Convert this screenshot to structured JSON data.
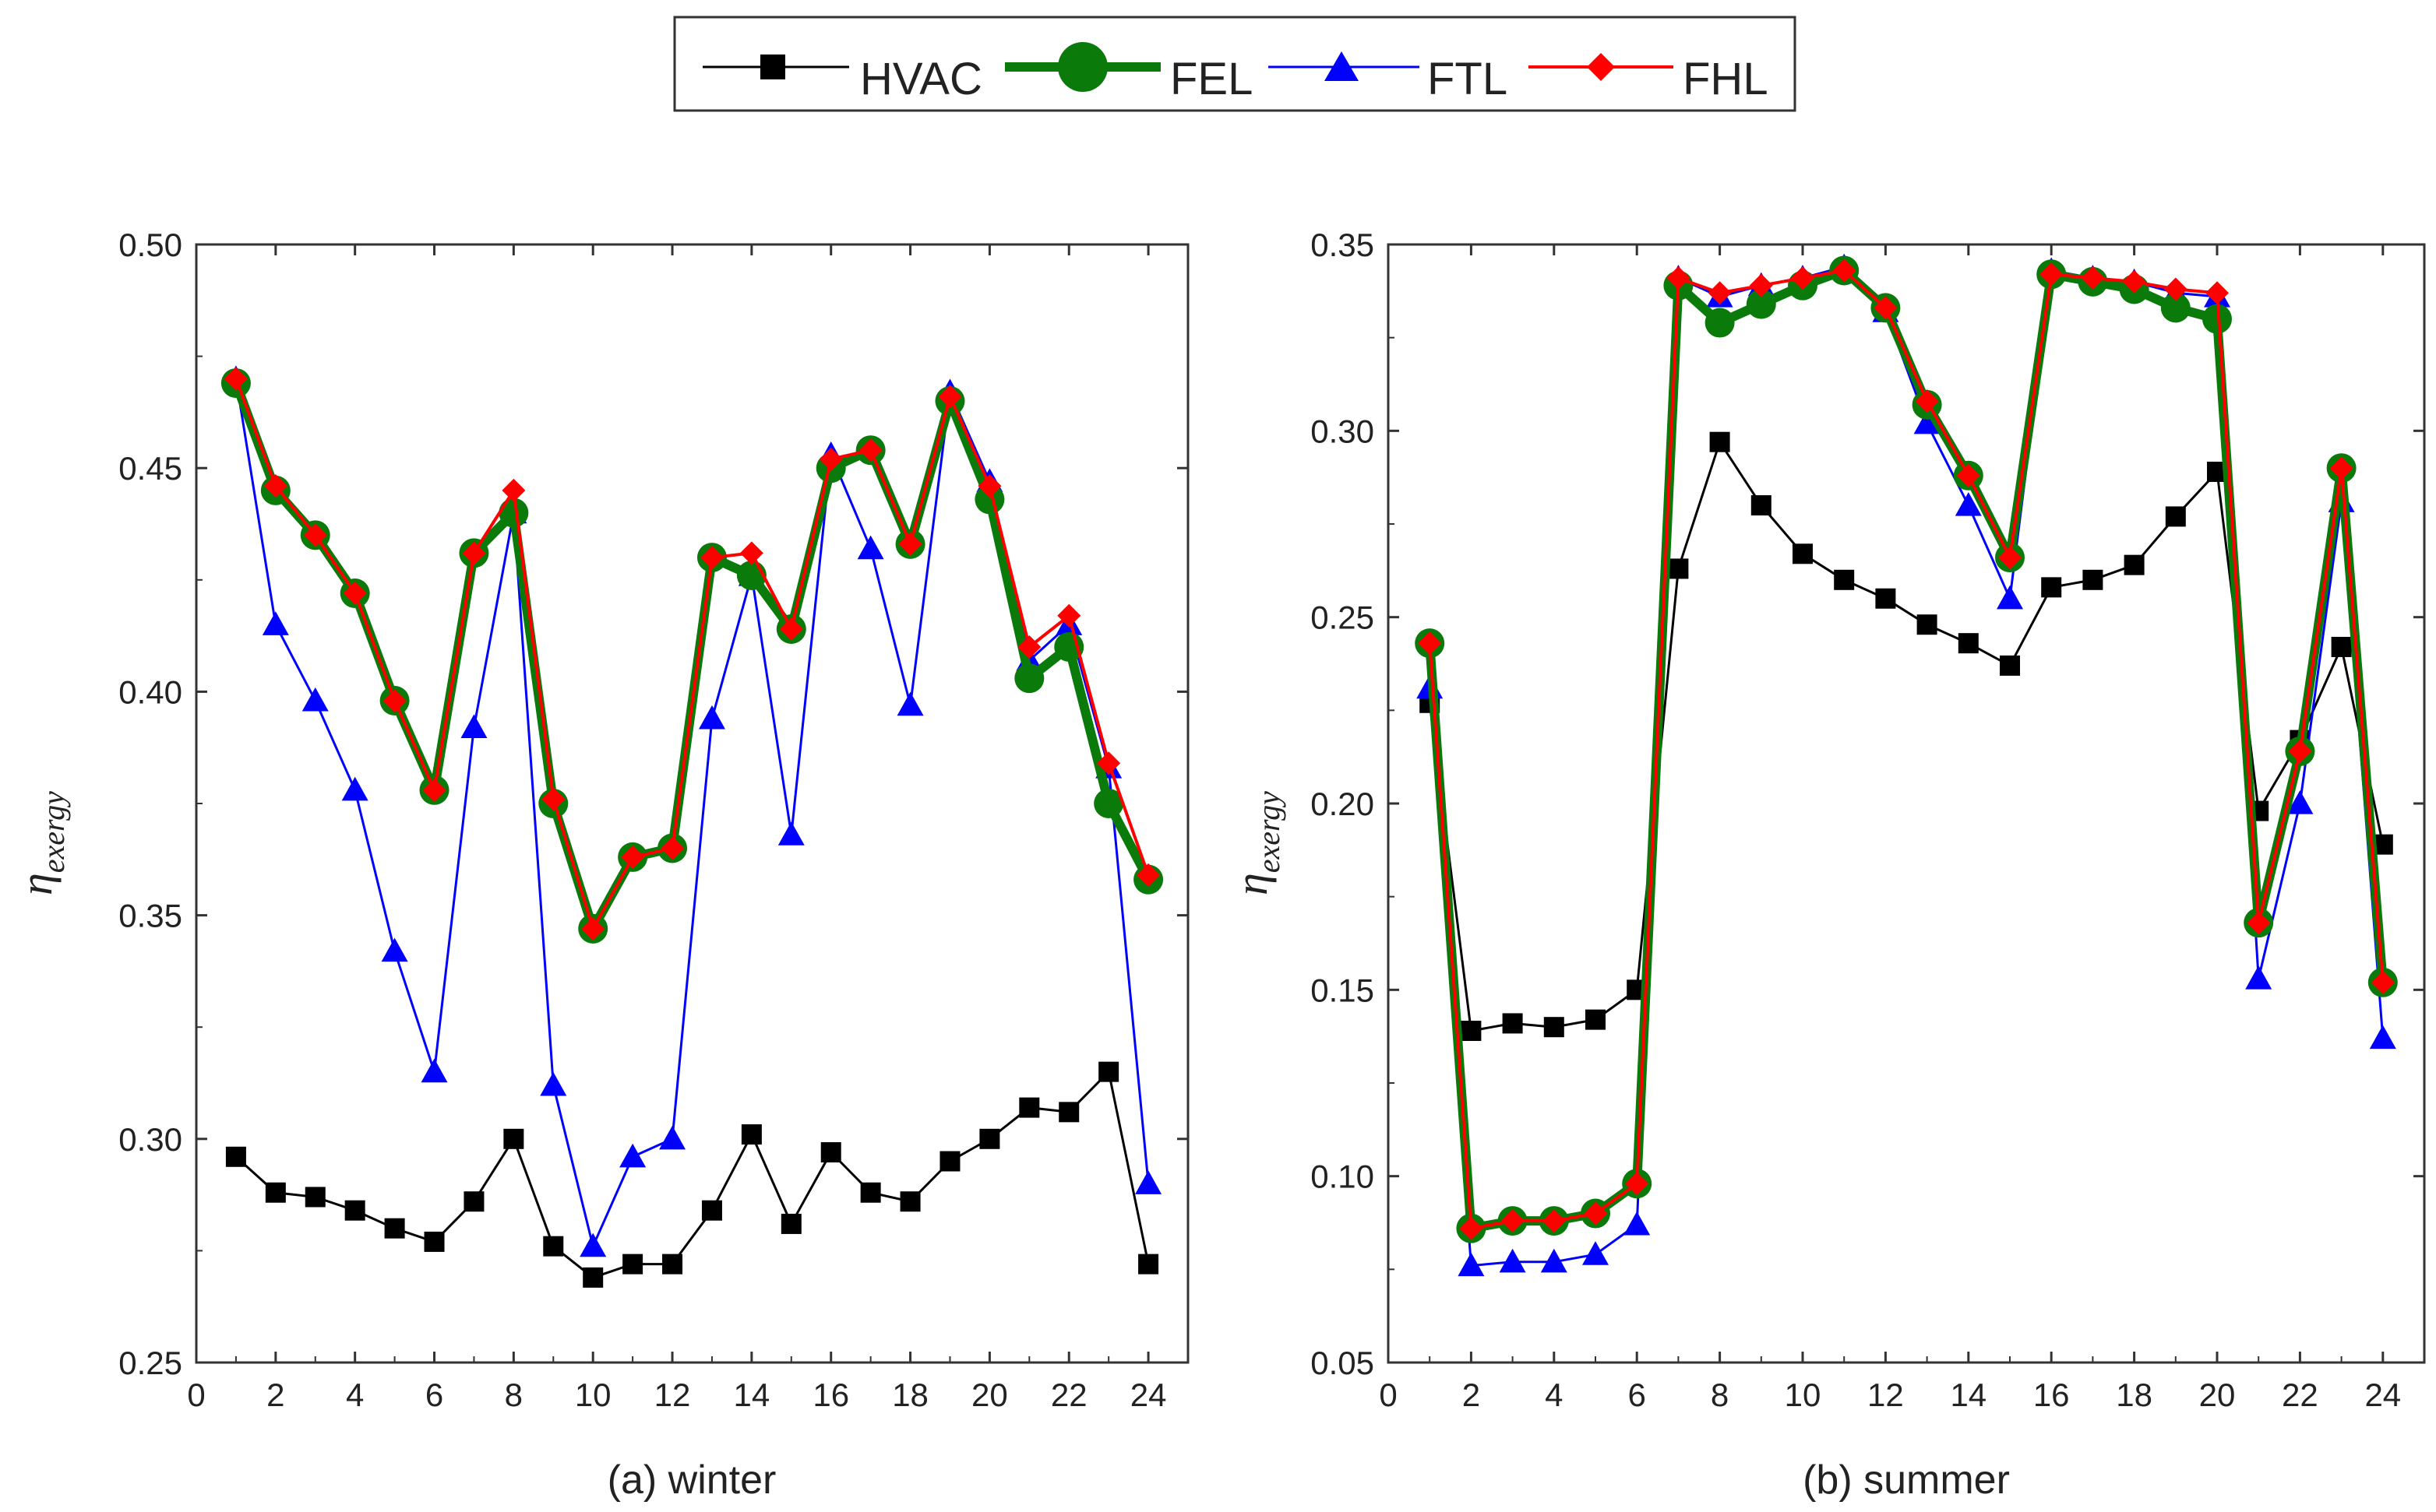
{
  "legend": {
    "entries": [
      {
        "label": "HVAC",
        "color": "#000000",
        "marker": "square"
      },
      {
        "label": "FEL",
        "color": "#0a7a0a",
        "marker": "circle"
      },
      {
        "label": "FTL",
        "color": "#0000ff",
        "marker": "triangle"
      },
      {
        "label": "FHL",
        "color": "#ff0000",
        "marker": "diamond"
      }
    ]
  },
  "chart_data": [
    {
      "type": "line",
      "title": "(a) winter",
      "xlabel": "",
      "ylabel": "η",
      "ylabel_sub": "exergy",
      "xlim": [
        0,
        25
      ],
      "ylim": [
        0.25,
        0.5
      ],
      "xticks": [
        0,
        2,
        4,
        6,
        8,
        10,
        12,
        14,
        16,
        18,
        20,
        22,
        24
      ],
      "yticks": [
        0.25,
        0.3,
        0.35,
        0.4,
        0.45,
        0.5
      ],
      "ytick_labels": [
        "0.25",
        "0.30",
        "0.35",
        "0.40",
        "0.45",
        "0.50"
      ],
      "x": [
        1,
        2,
        3,
        4,
        5,
        6,
        7,
        8,
        9,
        10,
        11,
        12,
        13,
        14,
        15,
        16,
        17,
        18,
        19,
        20,
        21,
        22,
        23,
        24
      ],
      "series": [
        {
          "name": "HVAC",
          "values": [
            0.296,
            0.288,
            0.287,
            0.284,
            0.28,
            0.277,
            0.286,
            0.3,
            0.276,
            0.269,
            0.272,
            0.272,
            0.284,
            0.301,
            0.281,
            0.297,
            0.288,
            0.286,
            0.295,
            0.3,
            0.307,
            0.306,
            0.315,
            0.272
          ]
        },
        {
          "name": "FEL",
          "values": [
            0.469,
            0.445,
            0.435,
            0.422,
            0.398,
            0.378,
            0.431,
            0.44,
            0.375,
            0.347,
            0.363,
            0.365,
            0.43,
            0.426,
            0.414,
            0.45,
            0.454,
            0.433,
            0.465,
            0.443,
            0.403,
            0.41,
            0.375,
            0.358
          ]
        },
        {
          "name": "FTL",
          "values": [
            0.47,
            0.415,
            0.398,
            0.378,
            0.342,
            0.315,
            0.392,
            0.44,
            0.312,
            0.276,
            0.296,
            0.3,
            0.394,
            0.426,
            0.368,
            0.453,
            0.432,
            0.397,
            0.467,
            0.447,
            0.407,
            0.415,
            0.383,
            0.29
          ]
        },
        {
          "name": "FHL",
          "values": [
            0.47,
            0.446,
            0.435,
            0.422,
            0.398,
            0.378,
            0.431,
            0.445,
            0.376,
            0.347,
            0.363,
            0.365,
            0.43,
            0.431,
            0.414,
            0.452,
            0.454,
            0.433,
            0.466,
            0.446,
            0.41,
            0.417,
            0.384,
            0.359
          ]
        }
      ]
    },
    {
      "type": "line",
      "title": "(b) summer",
      "xlabel": "",
      "ylabel": "η",
      "ylabel_sub": "exergy",
      "xlim": [
        0,
        25
      ],
      "ylim": [
        0.05,
        0.35
      ],
      "xticks": [
        0,
        2,
        4,
        6,
        8,
        10,
        12,
        14,
        16,
        18,
        20,
        22,
        24
      ],
      "yticks": [
        0.05,
        0.1,
        0.15,
        0.2,
        0.25,
        0.3,
        0.35
      ],
      "ytick_labels": [
        "0.05",
        "0.10",
        "0.15",
        "0.20",
        "0.25",
        "0.30",
        "0.35"
      ],
      "x": [
        1,
        2,
        3,
        4,
        5,
        6,
        7,
        8,
        9,
        10,
        11,
        12,
        13,
        14,
        15,
        16,
        17,
        18,
        19,
        20,
        21,
        22,
        23,
        24
      ],
      "series": [
        {
          "name": "HVAC",
          "values": [
            0.227,
            0.139,
            0.141,
            0.14,
            0.142,
            0.15,
            0.263,
            0.297,
            0.28,
            0.267,
            0.26,
            0.255,
            0.248,
            0.243,
            0.237,
            0.258,
            0.26,
            0.264,
            0.277,
            0.289,
            0.198,
            0.217,
            0.242,
            0.189
          ]
        },
        {
          "name": "FEL",
          "values": [
            0.243,
            0.086,
            0.088,
            0.088,
            0.09,
            0.098,
            0.339,
            0.329,
            0.334,
            0.339,
            0.343,
            0.333,
            0.307,
            0.288,
            0.266,
            0.342,
            0.34,
            0.338,
            0.333,
            0.33,
            0.168,
            0.214,
            0.29,
            0.152
          ]
        },
        {
          "name": "FTL",
          "values": [
            0.231,
            0.076,
            0.077,
            0.077,
            0.079,
            0.087,
            0.341,
            0.336,
            0.339,
            0.341,
            0.344,
            0.332,
            0.302,
            0.28,
            0.255,
            0.343,
            0.341,
            0.34,
            0.337,
            0.336,
            0.153,
            0.2,
            0.281,
            0.137
          ]
        },
        {
          "name": "FHL",
          "values": [
            0.243,
            0.086,
            0.088,
            0.088,
            0.09,
            0.098,
            0.341,
            0.337,
            0.339,
            0.341,
            0.343,
            0.333,
            0.308,
            0.288,
            0.266,
            0.342,
            0.341,
            0.34,
            0.338,
            0.337,
            0.168,
            0.214,
            0.29,
            0.152
          ]
        }
      ]
    }
  ]
}
